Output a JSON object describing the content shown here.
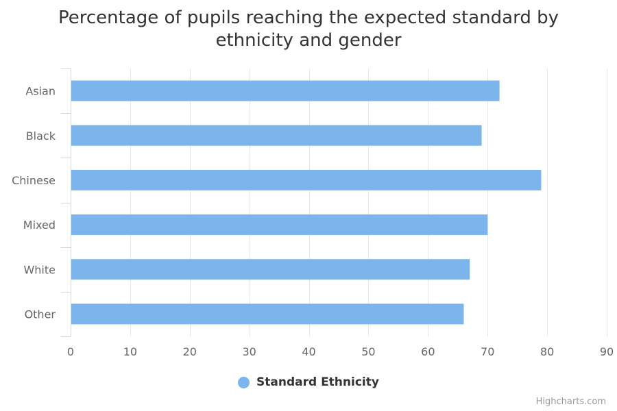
{
  "chart_data": {
    "type": "bar",
    "orientation": "horizontal",
    "title_lines": [
      "Percentage of pupils reaching the expected standard by",
      "ethnicity and gender"
    ],
    "categories": [
      "Asian",
      "Black",
      "Chinese",
      "Mixed",
      "White",
      "Other"
    ],
    "series": [
      {
        "name": "Standard Ethnicity",
        "color": "#7cb5ec",
        "values": [
          72,
          69,
          79,
          70,
          67,
          66
        ]
      }
    ],
    "xlim": [
      0,
      90
    ],
    "x_ticks": [
      0,
      10,
      20,
      30,
      40,
      50,
      60,
      70,
      80,
      90
    ],
    "grid": true,
    "legend_position": "bottom-center",
    "xlabel": "",
    "ylabel": ""
  },
  "credits": "Highcharts.com",
  "colors": {
    "bar": "#7cb5ec",
    "grid": "#e6e6e6",
    "axis": "#ccd6eb",
    "label": "#666666",
    "title": "#333333"
  }
}
